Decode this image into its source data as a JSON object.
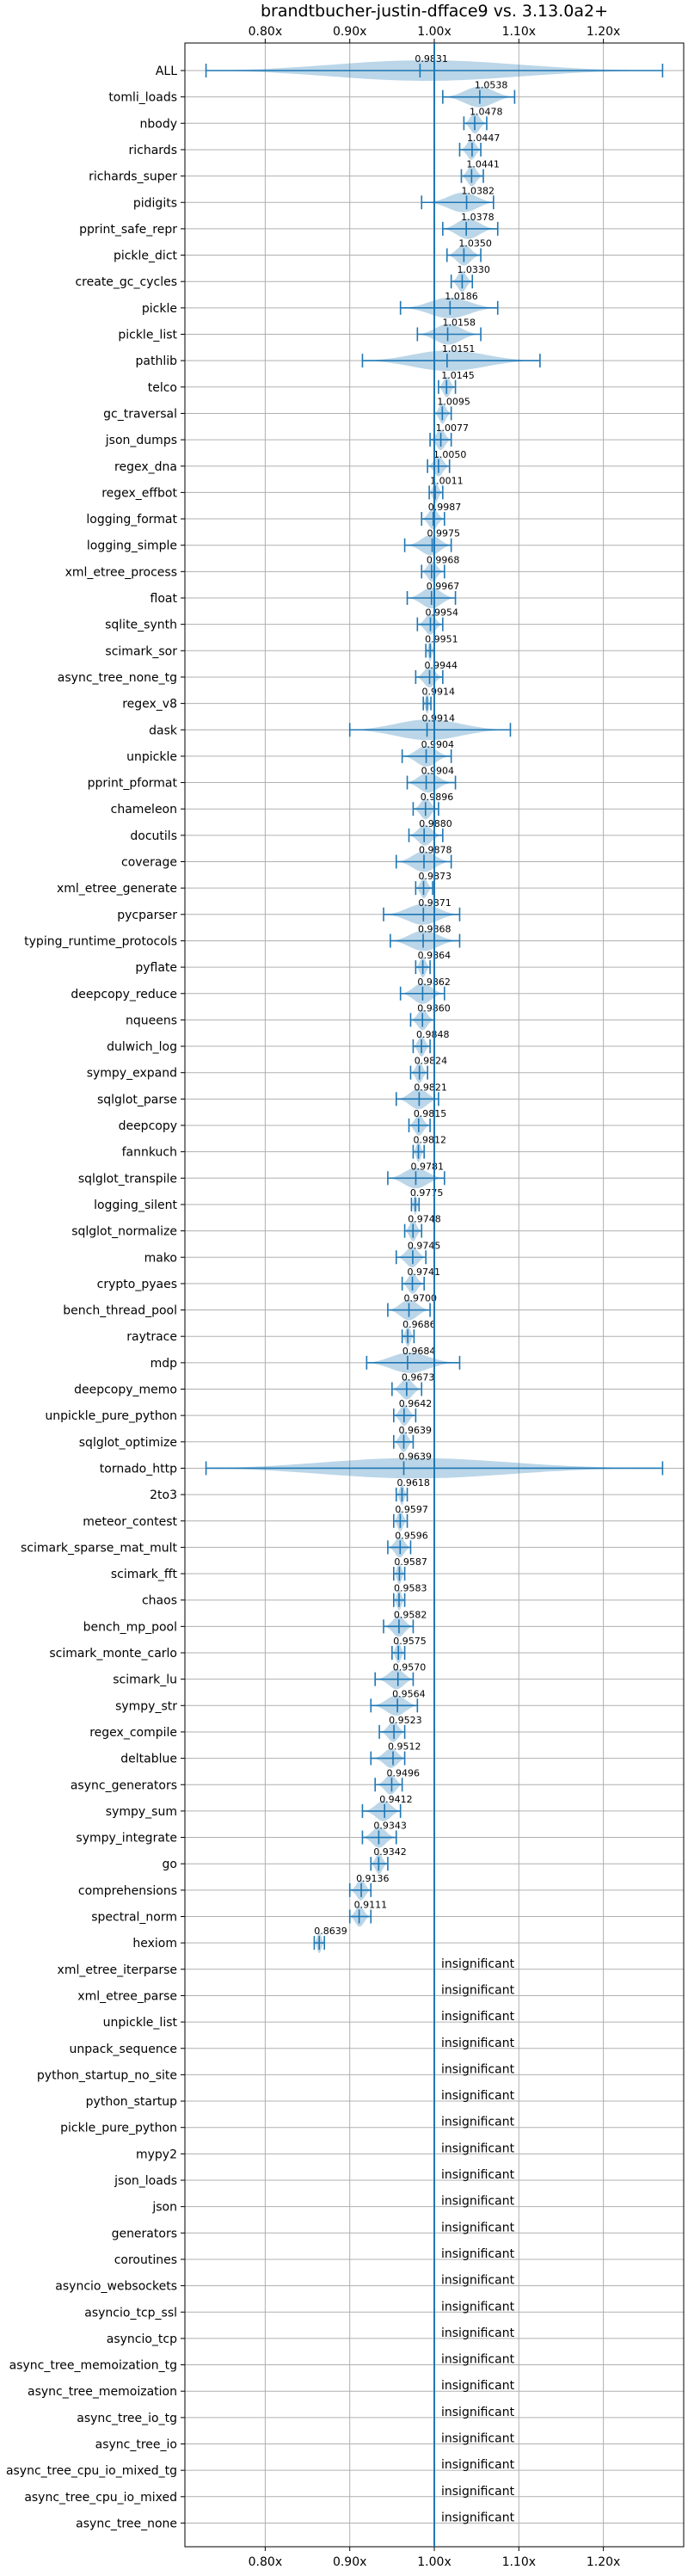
{
  "chart_data": {
    "type": "violin",
    "title": "brandtbucher-justin-dfface9 vs. 3.13.0a2+",
    "x_ticks": [
      "0.80x",
      "0.90x",
      "1.00x",
      "1.10x",
      "1.20x"
    ],
    "x_tick_values": [
      0.8,
      0.9,
      1.0,
      1.1,
      1.2
    ],
    "xlim": [
      0.705,
      1.295
    ],
    "reference_line": 1.0,
    "grid": true,
    "insignificant_label": "insignificant",
    "benchmarks": [
      {
        "name": "ALL",
        "median": 0.9831,
        "label": "0.9831",
        "min": 0.73,
        "max": 1.27
      },
      {
        "name": "tomli_loads",
        "median": 1.0538,
        "label": "1.0538",
        "min": 1.01,
        "max": 1.095
      },
      {
        "name": "nbody",
        "median": 1.0478,
        "label": "1.0478",
        "min": 1.035,
        "max": 1.062
      },
      {
        "name": "richards",
        "median": 1.0447,
        "label": "1.0447",
        "min": 1.03,
        "max": 1.055
      },
      {
        "name": "richards_super",
        "median": 1.0441,
        "label": "1.0441",
        "min": 1.032,
        "max": 1.058
      },
      {
        "name": "pidigits",
        "median": 1.0382,
        "label": "1.0382",
        "min": 0.985,
        "max": 1.07
      },
      {
        "name": "pprint_safe_repr",
        "median": 1.0378,
        "label": "1.0378",
        "min": 1.01,
        "max": 1.075
      },
      {
        "name": "pickle_dict",
        "median": 1.035,
        "label": "1.0350",
        "min": 1.015,
        "max": 1.055
      },
      {
        "name": "create_gc_cycles",
        "median": 1.033,
        "label": "1.0330",
        "min": 1.02,
        "max": 1.045
      },
      {
        "name": "pickle",
        "median": 1.0186,
        "label": "1.0186",
        "min": 0.96,
        "max": 1.075
      },
      {
        "name": "pickle_list",
        "median": 1.0158,
        "label": "1.0158",
        "min": 0.98,
        "max": 1.055
      },
      {
        "name": "pathlib",
        "median": 1.0151,
        "label": "1.0151",
        "min": 0.915,
        "max": 1.125
      },
      {
        "name": "telco",
        "median": 1.0145,
        "label": "1.0145",
        "min": 1.005,
        "max": 1.025
      },
      {
        "name": "gc_traversal",
        "median": 1.0095,
        "label": "1.0095",
        "min": 1.0,
        "max": 1.02
      },
      {
        "name": "json_dumps",
        "median": 1.0077,
        "label": "1.0077",
        "min": 0.995,
        "max": 1.02
      },
      {
        "name": "regex_dna",
        "median": 1.005,
        "label": "1.0050",
        "min": 0.992,
        "max": 1.018
      },
      {
        "name": "regex_effbot",
        "median": 1.0011,
        "label": "1.0011",
        "min": 0.994,
        "max": 1.01
      },
      {
        "name": "logging_format",
        "median": 0.9987,
        "label": "0.9987",
        "min": 0.985,
        "max": 1.012
      },
      {
        "name": "logging_simple",
        "median": 0.9975,
        "label": "0.9975",
        "min": 0.965,
        "max": 1.02
      },
      {
        "name": "xml_etree_process",
        "median": 0.9968,
        "label": "0.9968",
        "min": 0.985,
        "max": 1.012
      },
      {
        "name": "float",
        "median": 0.9967,
        "label": "0.9967",
        "min": 0.968,
        "max": 1.025
      },
      {
        "name": "sqlite_synth",
        "median": 0.9954,
        "label": "0.9954",
        "min": 0.98,
        "max": 1.01
      },
      {
        "name": "scimark_sor",
        "median": 0.9951,
        "label": "0.9951",
        "min": 0.99,
        "max": 1.0
      },
      {
        "name": "async_tree_none_tg",
        "median": 0.9944,
        "label": "0.9944",
        "min": 0.978,
        "max": 1.01
      },
      {
        "name": "regex_v8",
        "median": 0.9914,
        "label": "0.9914",
        "min": 0.987,
        "max": 0.996
      },
      {
        "name": "dask",
        "median": 0.9914,
        "label": "0.9914",
        "min": 0.9,
        "max": 1.09
      },
      {
        "name": "unpickle",
        "median": 0.9904,
        "label": "0.9904",
        "min": 0.962,
        "max": 1.02
      },
      {
        "name": "pprint_pformat",
        "median": 0.9904,
        "label": "0.9904",
        "min": 0.968,
        "max": 1.025
      },
      {
        "name": "chameleon",
        "median": 0.9896,
        "label": "0.9896",
        "min": 0.975,
        "max": 1.005
      },
      {
        "name": "docutils",
        "median": 0.988,
        "label": "0.9880",
        "min": 0.97,
        "max": 1.01
      },
      {
        "name": "coverage",
        "median": 0.9878,
        "label": "0.9878",
        "min": 0.955,
        "max": 1.02
      },
      {
        "name": "xml_etree_generate",
        "median": 0.9873,
        "label": "0.9873",
        "min": 0.978,
        "max": 0.998
      },
      {
        "name": "pycparser",
        "median": 0.9871,
        "label": "0.9871",
        "min": 0.94,
        "max": 1.03
      },
      {
        "name": "typing_runtime_protocols",
        "median": 0.9868,
        "label": "0.9868",
        "min": 0.948,
        "max": 1.03
      },
      {
        "name": "pyflate",
        "median": 0.9864,
        "label": "0.9864",
        "min": 0.978,
        "max": 0.995
      },
      {
        "name": "deepcopy_reduce",
        "median": 0.9862,
        "label": "0.9862",
        "min": 0.96,
        "max": 1.012
      },
      {
        "name": "nqueens",
        "median": 0.986,
        "label": "0.9860",
        "min": 0.972,
        "max": 1.0
      },
      {
        "name": "dulwich_log",
        "median": 0.9848,
        "label": "0.9848",
        "min": 0.975,
        "max": 0.995
      },
      {
        "name": "sympy_expand",
        "median": 0.9824,
        "label": "0.9824",
        "min": 0.972,
        "max": 0.992
      },
      {
        "name": "sqlglot_parse",
        "median": 0.9821,
        "label": "0.9821",
        "min": 0.955,
        "max": 1.005
      },
      {
        "name": "deepcopy",
        "median": 0.9815,
        "label": "0.9815",
        "min": 0.97,
        "max": 0.995
      },
      {
        "name": "fannkuch",
        "median": 0.9812,
        "label": "0.9812",
        "min": 0.975,
        "max": 0.988
      },
      {
        "name": "sqlglot_transpile",
        "median": 0.9781,
        "label": "0.9781",
        "min": 0.945,
        "max": 1.012
      },
      {
        "name": "logging_silent",
        "median": 0.9775,
        "label": "0.9775",
        "min": 0.973,
        "max": 0.982
      },
      {
        "name": "sqlglot_normalize",
        "median": 0.9748,
        "label": "0.9748",
        "min": 0.965,
        "max": 0.985
      },
      {
        "name": "mako",
        "median": 0.9745,
        "label": "0.9745",
        "min": 0.955,
        "max": 0.99
      },
      {
        "name": "crypto_pyaes",
        "median": 0.9741,
        "label": "0.9741",
        "min": 0.962,
        "max": 0.988
      },
      {
        "name": "bench_thread_pool",
        "median": 0.97,
        "label": "0.9700",
        "min": 0.945,
        "max": 0.995
      },
      {
        "name": "raytrace",
        "median": 0.9686,
        "label": "0.9686",
        "min": 0.962,
        "max": 0.976
      },
      {
        "name": "mdp",
        "median": 0.9684,
        "label": "0.9684",
        "min": 0.92,
        "max": 1.03
      },
      {
        "name": "deepcopy_memo",
        "median": 0.9673,
        "label": "0.9673",
        "min": 0.95,
        "max": 0.985
      },
      {
        "name": "unpickle_pure_python",
        "median": 0.9642,
        "label": "0.9642",
        "min": 0.952,
        "max": 0.978
      },
      {
        "name": "sqlglot_optimize",
        "median": 0.9639,
        "label": "0.9639",
        "min": 0.952,
        "max": 0.975
      },
      {
        "name": "tornado_http",
        "median": 0.9639,
        "label": "0.9639",
        "min": 0.73,
        "max": 1.27
      },
      {
        "name": "2to3",
        "median": 0.9618,
        "label": "0.9618",
        "min": 0.955,
        "max": 0.968
      },
      {
        "name": "meteor_contest",
        "median": 0.9597,
        "label": "0.9597",
        "min": 0.952,
        "max": 0.968
      },
      {
        "name": "scimark_sparse_mat_mult",
        "median": 0.9596,
        "label": "0.9596",
        "min": 0.945,
        "max": 0.972
      },
      {
        "name": "scimark_fft",
        "median": 0.9587,
        "label": "0.9587",
        "min": 0.952,
        "max": 0.965
      },
      {
        "name": "chaos",
        "median": 0.9583,
        "label": "0.9583",
        "min": 0.952,
        "max": 0.965
      },
      {
        "name": "bench_mp_pool",
        "median": 0.9582,
        "label": "0.9582",
        "min": 0.94,
        "max": 0.975
      },
      {
        "name": "scimark_monte_carlo",
        "median": 0.9575,
        "label": "0.9575",
        "min": 0.95,
        "max": 0.965
      },
      {
        "name": "scimark_lu",
        "median": 0.957,
        "label": "0.9570",
        "min": 0.93,
        "max": 0.975
      },
      {
        "name": "sympy_str",
        "median": 0.9564,
        "label": "0.9564",
        "min": 0.925,
        "max": 0.98
      },
      {
        "name": "regex_compile",
        "median": 0.9523,
        "label": "0.9523",
        "min": 0.935,
        "max": 0.965
      },
      {
        "name": "deltablue",
        "median": 0.9512,
        "label": "0.9512",
        "min": 0.925,
        "max": 0.965
      },
      {
        "name": "async_generators",
        "median": 0.9496,
        "label": "0.9496",
        "min": 0.93,
        "max": 0.962
      },
      {
        "name": "sympy_sum",
        "median": 0.9412,
        "label": "0.9412",
        "min": 0.915,
        "max": 0.96
      },
      {
        "name": "sympy_integrate",
        "median": 0.9343,
        "label": "0.9343",
        "min": 0.915,
        "max": 0.955
      },
      {
        "name": "go",
        "median": 0.9342,
        "label": "0.9342",
        "min": 0.925,
        "max": 0.945
      },
      {
        "name": "comprehensions",
        "median": 0.9136,
        "label": "0.9136",
        "min": 0.9,
        "max": 0.925
      },
      {
        "name": "spectral_norm",
        "median": 0.9111,
        "label": "0.9111",
        "min": 0.9,
        "max": 0.925
      },
      {
        "name": "hexiom",
        "median": 0.8639,
        "label": "0.8639",
        "min": 0.858,
        "max": 0.87
      },
      {
        "name": "xml_etree_iterparse",
        "insignificant": true
      },
      {
        "name": "xml_etree_parse",
        "insignificant": true
      },
      {
        "name": "unpickle_list",
        "insignificant": true
      },
      {
        "name": "unpack_sequence",
        "insignificant": true
      },
      {
        "name": "python_startup_no_site",
        "insignificant": true
      },
      {
        "name": "python_startup",
        "insignificant": true
      },
      {
        "name": "pickle_pure_python",
        "insignificant": true
      },
      {
        "name": "mypy2",
        "insignificant": true
      },
      {
        "name": "json_loads",
        "insignificant": true
      },
      {
        "name": "json",
        "insignificant": true
      },
      {
        "name": "generators",
        "insignificant": true
      },
      {
        "name": "coroutines",
        "insignificant": true
      },
      {
        "name": "asyncio_websockets",
        "insignificant": true
      },
      {
        "name": "asyncio_tcp_ssl",
        "insignificant": true
      },
      {
        "name": "asyncio_tcp",
        "insignificant": true
      },
      {
        "name": "async_tree_memoization_tg",
        "insignificant": true
      },
      {
        "name": "async_tree_memoization",
        "insignificant": true
      },
      {
        "name": "async_tree_io_tg",
        "insignificant": true
      },
      {
        "name": "async_tree_io",
        "insignificant": true
      },
      {
        "name": "async_tree_cpu_io_mixed_tg",
        "insignificant": true
      },
      {
        "name": "async_tree_cpu_io_mixed",
        "insignificant": true
      },
      {
        "name": "async_tree_none",
        "insignificant": true
      }
    ]
  },
  "colors": {
    "series": "#1f77b4",
    "grid": "#b0b0b0",
    "axis": "#000000"
  }
}
